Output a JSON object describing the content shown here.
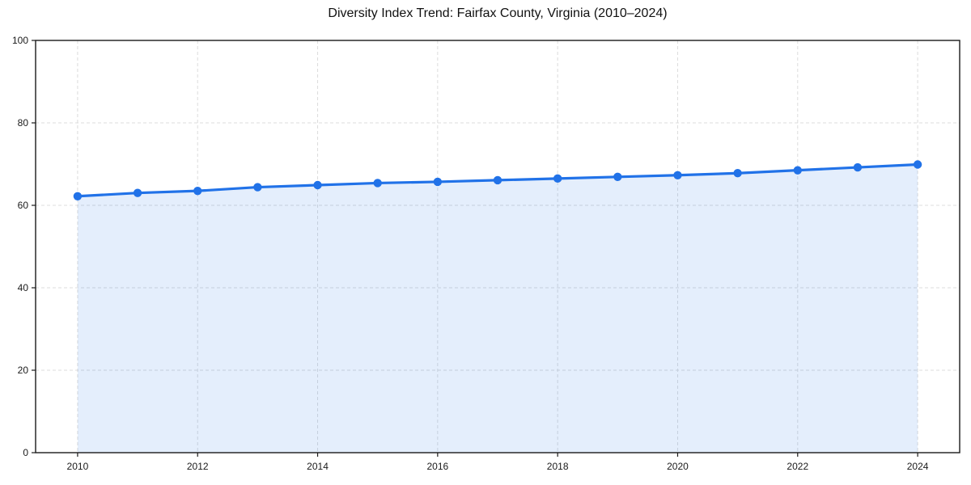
{
  "chart_data": {
    "type": "area",
    "title": "Diversity Index Trend: Fairfax County, Virginia (2010–2024)",
    "xlabel": "",
    "ylabel": "",
    "x": [
      2010,
      2011,
      2012,
      2013,
      2014,
      2015,
      2016,
      2017,
      2018,
      2019,
      2020,
      2021,
      2022,
      2023,
      2024
    ],
    "series": [
      {
        "name": "Diversity Index",
        "values": [
          62.2,
          63.0,
          63.5,
          64.4,
          64.9,
          65.4,
          65.7,
          66.1,
          66.5,
          66.9,
          67.3,
          67.8,
          68.5,
          69.2,
          69.9
        ]
      }
    ],
    "xticks": [
      2010,
      2012,
      2014,
      2016,
      2018,
      2020,
      2022,
      2024
    ],
    "yticks": [
      0,
      20,
      40,
      60,
      80,
      100
    ],
    "xlim": [
      2009.3,
      2024.7
    ],
    "ylim": [
      0,
      100
    ],
    "grid": true,
    "grid_style": "dashed",
    "legend": "none",
    "colors": {
      "line": "#2172E8",
      "marker": "#2172E8",
      "area_fill": "rgba(33, 114, 232, 0.12)",
      "grid": "#DCDCDC",
      "axis": "#1A1A1A",
      "tick_label": "#1A1A1A",
      "title": "#111111"
    },
    "marker_radius": 5.2,
    "line_width": 3.2
  }
}
